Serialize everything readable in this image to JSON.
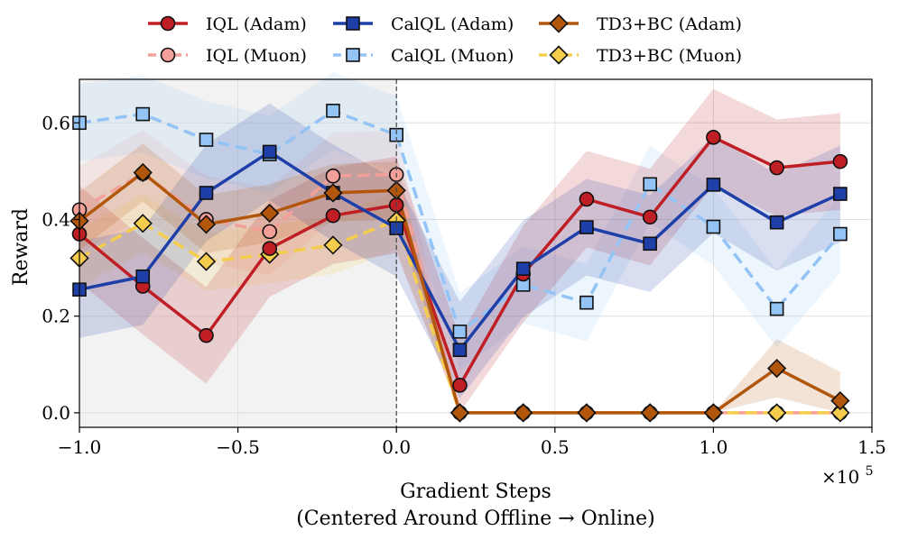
{
  "chart_data": {
    "type": "line",
    "xlabel_line1": "Gradient Steps",
    "xlabel_line2": "(Centered Around Offline → Online)",
    "ylabel": "Reward",
    "x_multiplier_base": "×10",
    "x_multiplier_exp": "5",
    "xlim": [
      -1.0,
      1.5
    ],
    "ylim": [
      -0.03,
      0.69
    ],
    "xticks": [
      -1.0,
      -0.5,
      0.0,
      0.5,
      1.0,
      1.5
    ],
    "xtick_labels": [
      "−1.0",
      "−0.5",
      "0.0",
      "0.5",
      "1.0",
      "1.5"
    ],
    "yticks": [
      0.0,
      0.2,
      0.4,
      0.6
    ],
    "ytick_labels": [
      "0.0",
      "0.2",
      "0.4",
      "0.6"
    ],
    "offline_region": [
      -1.0,
      0.0
    ],
    "divider_x": 0.0,
    "x": [
      -1.0,
      -0.8,
      -0.6,
      -0.4,
      -0.2,
      0.0,
      0.2,
      0.4,
      0.6,
      0.8,
      1.0,
      1.2,
      1.4
    ],
    "series": [
      {
        "name": "IQL (Muon)",
        "color": "#f4a09a",
        "marker": "circle",
        "dash": true,
        "values": [
          0.42,
          0.495,
          0.4,
          0.375,
          0.49,
          0.493,
          0.0,
          0.0,
          0.0,
          0.0,
          0.0,
          0.0,
          0.0
        ],
        "band": 0.09
      },
      {
        "name": "CalQL (Muon)",
        "color": "#93c4f5",
        "marker": "square",
        "dash": true,
        "values": [
          0.6,
          0.618,
          0.565,
          0.535,
          0.625,
          0.575,
          0.168,
          0.265,
          0.228,
          0.473,
          0.385,
          0.215,
          0.37
        ],
        "band": 0.08
      },
      {
        "name": "TD3+BC (Muon)",
        "color": "#f5cd4c",
        "marker": "diamond",
        "dash": true,
        "values": [
          0.32,
          0.392,
          0.313,
          0.328,
          0.347,
          0.398,
          0.0,
          0.0,
          0.0,
          0.0,
          0.0,
          0.0,
          0.0
        ],
        "band": 0.06
      },
      {
        "name": "IQL (Adam)",
        "color": "#bf1e24",
        "marker": "circle",
        "dash": false,
        "values": [
          0.37,
          0.262,
          0.16,
          0.34,
          0.408,
          0.43,
          0.057,
          0.287,
          0.442,
          0.405,
          0.57,
          0.507,
          0.52
        ],
        "band": 0.1
      },
      {
        "name": "CalQL (Adam)",
        "color": "#1e3fa8",
        "marker": "square",
        "dash": false,
        "values": [
          0.255,
          0.282,
          0.455,
          0.54,
          0.455,
          0.382,
          0.13,
          0.298,
          0.384,
          0.35,
          0.472,
          0.394,
          0.453
        ],
        "band": 0.1
      },
      {
        "name": "TD3+BC (Adam)",
        "color": "#b2560c",
        "marker": "diamond",
        "dash": false,
        "values": [
          0.397,
          0.497,
          0.39,
          0.413,
          0.455,
          0.46,
          0.0,
          0.0,
          0.0,
          0.0,
          0.0,
          0.092,
          0.025
        ],
        "band": 0.06
      }
    ],
    "legend": [
      {
        "label": "IQL (Adam)",
        "color": "#bf1e24",
        "marker": "circle",
        "dash": false
      },
      {
        "label": "CalQL (Adam)",
        "color": "#1e3fa8",
        "marker": "square",
        "dash": false
      },
      {
        "label": "TD3+BC (Adam)",
        "color": "#b2560c",
        "marker": "diamond",
        "dash": false
      },
      {
        "label": "IQL (Muon)",
        "color": "#f4a09a",
        "marker": "circle",
        "dash": true
      },
      {
        "label": "CalQL (Muon)",
        "color": "#93c4f5",
        "marker": "square",
        "dash": true
      },
      {
        "label": "TD3+BC (Muon)",
        "color": "#f5cd4c",
        "marker": "diamond",
        "dash": true
      }
    ],
    "legend_position": "top-center"
  }
}
